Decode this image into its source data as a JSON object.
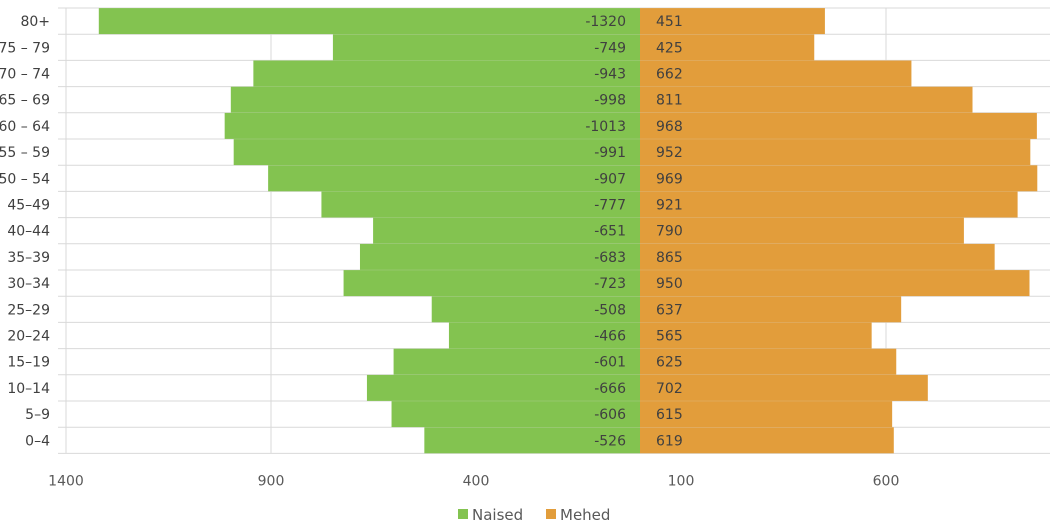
{
  "chart_data": {
    "type": "bar",
    "orientation": "horizontal",
    "categories": [
      "80+",
      "75 – 79",
      "70 – 74",
      "65 – 69",
      "60 – 64",
      "55 – 59",
      "50 – 54",
      "45–49",
      "40–44",
      "35–39",
      "30–34",
      "25–29",
      "20–24",
      "15–19",
      "10–14",
      "5–9",
      "0–4"
    ],
    "series": [
      {
        "name": "Naised",
        "color": "#83c350",
        "values": [
          -1320,
          -749,
          -943,
          -998,
          -1013,
          -991,
          -907,
          -777,
          -651,
          -683,
          -723,
          -508,
          -466,
          -601,
          -666,
          -606,
          -526
        ]
      },
      {
        "name": "Mehed",
        "color": "#e29d3b",
        "values": [
          451,
          425,
          662,
          811,
          968,
          952,
          969,
          921,
          790,
          865,
          950,
          637,
          565,
          625,
          702,
          615,
          619
        ]
      }
    ],
    "x_tick_labels": [
      "1400",
      "900",
      "400",
      "100",
      "600"
    ],
    "x_tick_values": [
      -1400,
      -900,
      -400,
      100,
      600
    ],
    "xlim": [
      -1450,
      1000
    ],
    "grid": true,
    "legend_position": "bottom"
  }
}
